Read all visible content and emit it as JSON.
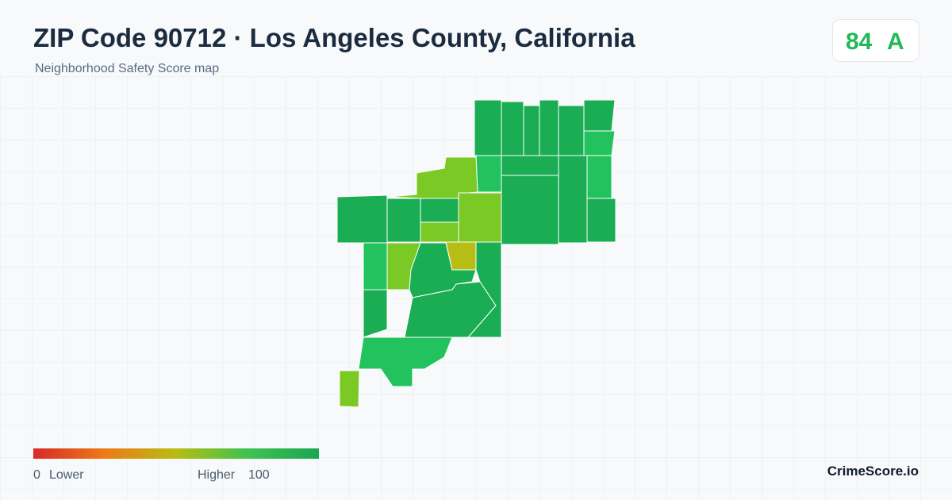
{
  "header": {
    "title": "ZIP Code 90712 · Los Angeles County, California",
    "subtitle": "Neighborhood Safety Score map"
  },
  "score": {
    "value": 84,
    "grade": "A"
  },
  "legend": {
    "min": 0,
    "min_label": "Lower",
    "max_label": "Higher",
    "max": 100
  },
  "brand": "CrimeScore.io"
}
